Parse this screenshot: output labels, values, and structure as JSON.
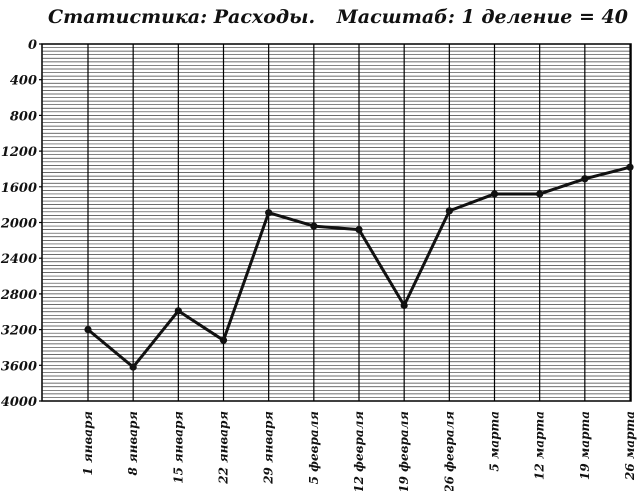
{
  "header": {
    "title": "Статистика: Расходы.",
    "scale": "Масштаб: 1 деление = 40"
  },
  "chart_data": {
    "type": "line",
    "title": "Статистика: Расходы.",
    "subtitle": "Масштаб: 1 деление = 40",
    "xlabel": "",
    "ylabel": "",
    "categories": [
      "1 января",
      "8 января",
      "15 января",
      "22 января",
      "29 января",
      "5 февраля",
      "12 февраля",
      "19 февраля",
      "26 февраля",
      "5 марта",
      "12 марта",
      "19 марта",
      "26 марта"
    ],
    "y_ticks": [
      "0",
      "400",
      "800",
      "1200",
      "1600",
      "2000",
      "2400",
      "2800",
      "3200",
      "3600",
      "4000"
    ],
    "ylim": [
      0,
      4000
    ],
    "y_inverted": true,
    "grid": true,
    "minor_step": 40,
    "series": [
      {
        "values": [
          3200,
          3620,
          2990,
          3320,
          1890,
          2040,
          2080,
          2930,
          1870,
          1680,
          1680,
          1510,
          1380
        ]
      }
    ],
    "colors": {
      "line": "#111111",
      "grid": "#1a1a1a",
      "background": "#ffffff"
    }
  }
}
